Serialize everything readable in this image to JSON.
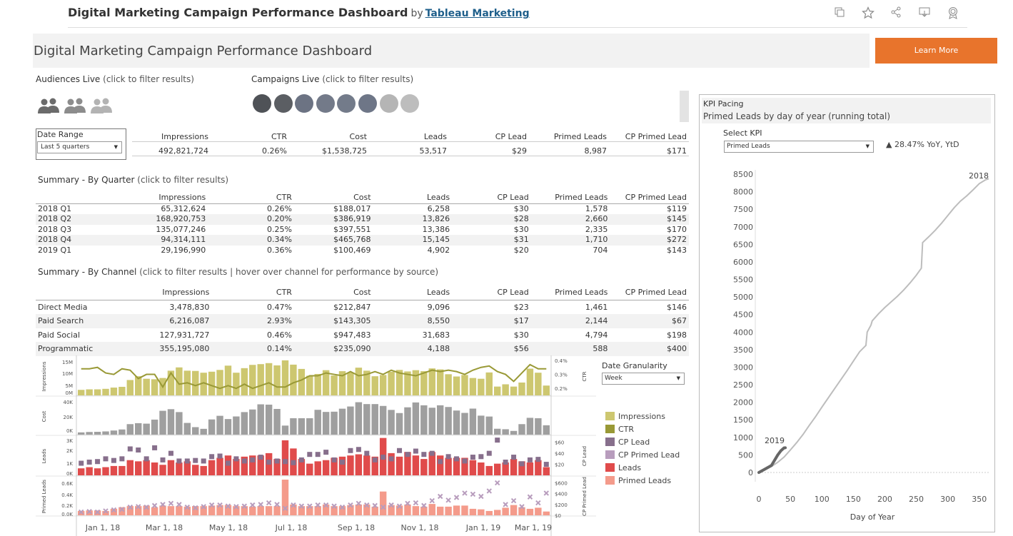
{
  "top": {
    "title": "Digital Marketing Campaign Performance Dashboard",
    "by": "by",
    "author": "Tableau Marketing",
    "icons": [
      "copy-icon",
      "star-icon",
      "share-icon",
      "download-icon",
      "award-icon"
    ]
  },
  "header": {
    "title": "Digital Marketing Campaign Performance Dashboard",
    "learn_more": "Learn More"
  },
  "audiences": {
    "label": "Audiences Live",
    "hint": "(click to filter results)"
  },
  "campaigns": {
    "label": "Campaigns Live",
    "hint": "(click to filter results)",
    "dot_colors": [
      "#4f5257",
      "#5b5e63",
      "#6c7383",
      "#737a89",
      "#737b8a",
      "#6e7687",
      "#b5b5b5",
      "#bdbdbd"
    ]
  },
  "date_range": {
    "label": "Date Range",
    "value": "Last 5 quarters"
  },
  "totals": {
    "headers": [
      "Impressions",
      "CTR",
      "Cost",
      "Leads",
      "CP Lead",
      "Primed Leads",
      "CP Primed Lead"
    ],
    "values": [
      "492,821,724",
      "0.26%",
      "$1,538,725",
      "53,517",
      "$29",
      "8,987",
      "$171"
    ]
  },
  "by_quarter": {
    "title": "Summary - By Quarter",
    "hint": "(click to filter results)",
    "headers": [
      "Impressions",
      "CTR",
      "Cost",
      "Leads",
      "CP Lead",
      "Primed Leads",
      "CP Primed Lead"
    ],
    "rows": [
      [
        "2018 Q1",
        "65,312,624",
        "0.26%",
        "$188,017",
        "6,258",
        "$30",
        "1,578",
        "$119"
      ],
      [
        "2018 Q2",
        "168,920,753",
        "0.20%",
        "$386,919",
        "13,826",
        "$28",
        "2,660",
        "$145"
      ],
      [
        "2018 Q3",
        "135,077,246",
        "0.25%",
        "$397,551",
        "13,386",
        "$30",
        "2,335",
        "$170"
      ],
      [
        "2018 Q4",
        "94,314,111",
        "0.34%",
        "$465,768",
        "15,145",
        "$31",
        "1,710",
        "$272"
      ],
      [
        "2019 Q1",
        "29,196,990",
        "0.36%",
        "$100,469",
        "4,902",
        "$20",
        "704",
        "$143"
      ]
    ]
  },
  "by_channel": {
    "title": "Summary - By Channel",
    "hint": "(click to filter results | hover over channel for performance by source)",
    "headers": [
      "Impressions",
      "CTR",
      "Cost",
      "Leads",
      "CP Lead",
      "Primed Leads",
      "CP Primed Lead"
    ],
    "rows": [
      [
        "Direct Media",
        "3,478,830",
        "0.47%",
        "$212,847",
        "9,096",
        "$23",
        "1,461",
        "$146"
      ],
      [
        "Paid Search",
        "6,216,087",
        "2.93%",
        "$143,305",
        "8,550",
        "$17",
        "2,144",
        "$67"
      ],
      [
        "Paid Social",
        "127,931,727",
        "0.46%",
        "$947,483",
        "31,683",
        "$30",
        "4,794",
        "$198"
      ],
      [
        "Programmatic",
        "355,195,080",
        "0.14%",
        "$235,090",
        "4,188",
        "$56",
        "588",
        "$400"
      ]
    ]
  },
  "date_granularity": {
    "label": "Date Granularity",
    "value": "Week"
  },
  "legend": [
    {
      "label": "Impressions",
      "color": "#cdc770"
    },
    {
      "label": "CTR",
      "color": "#999936"
    },
    {
      "label": "CP Lead",
      "color": "#876f8c"
    },
    {
      "label": "CP Primed Lead",
      "color": "#b89dbd"
    },
    {
      "label": "Leads",
      "color": "#e04b4b"
    },
    {
      "label": "Primed Leads",
      "color": "#f49b8b"
    }
  ],
  "kpi": {
    "title": "KPI Pacing",
    "subtitle": "Primed Leads by day of year (running total)",
    "select_label": "Select KPI",
    "select_value": "Primed Leads",
    "yoy": "▲ 28.47% YoY, YtD"
  },
  "chart_data": [
    {
      "type": "bar",
      "name": "weekly-panels",
      "x_ticks": [
        "Jan 1, 18",
        "Mar 1, 18",
        "May 1, 18",
        "Jul 1, 18",
        "Sep 1, 18",
        "Nov 1, 18",
        "Jan 1, 19",
        "Mar 1, 19"
      ],
      "panels": [
        {
          "ylabel": "Impressions",
          "yticks": [
            "15M",
            "10M",
            "5M",
            "0M"
          ],
          "y2label": "CTR",
          "y2ticks": [
            "0.4%",
            "0.3%",
            "0.2%"
          ]
        },
        {
          "ylabel": "Cost",
          "yticks": [
            "40K",
            "20K",
            "0K"
          ]
        },
        {
          "ylabel": "Leads",
          "yticks": [
            "3K",
            "2K",
            "1K",
            "0K"
          ],
          "y2label": "CP Lead",
          "y2ticks": [
            "$60",
            "$40",
            "$20"
          ]
        },
        {
          "ylabel": "Primed Leads",
          "yticks": [
            "0.6K",
            "0.4K",
            "0.2K",
            "0.0K"
          ],
          "y2label": "CP Primed Lead",
          "y2ticks": [
            "$600",
            "$400",
            "$200",
            "$0"
          ]
        }
      ],
      "series": [
        {
          "name": "Impressions",
          "values": [
            2.2,
            2.4,
            2.4,
            2.6,
            3.1,
            3.4,
            6.1,
            7.6,
            6.6,
            6.4,
            6.9,
            9.8,
            11.1,
            9.8,
            9.7,
            9.0,
            9.4,
            10.1,
            11.8,
            9.0,
            10.8,
            12.1,
            12.4,
            12.8,
            11.9,
            13.9,
            12.2,
            10.5,
            7.8,
            8.5,
            10.0,
            7.9,
            9.6,
            9.1,
            11.0,
            9.8,
            7.6,
            8.1,
            9.4,
            10.1,
            9.5,
            10.0,
            9.6,
            10.7,
            10.3,
            8.4,
            7.5,
            8.1,
            6.9,
            6.6,
            9.1,
            3.5,
            4.4,
            3.5,
            5.1,
            10.6,
            9.0,
            3.9
          ]
        },
        {
          "name": "CTR",
          "values": [
            0.34,
            0.34,
            0.35,
            0.31,
            0.3,
            0.34,
            0.33,
            0.27,
            0.3,
            0.3,
            0.21,
            0.31,
            0.23,
            0.24,
            0.22,
            0.24,
            0.22,
            0.2,
            0.22,
            0.2,
            0.23,
            0.2,
            0.22,
            0.24,
            0.21,
            0.21,
            0.24,
            0.26,
            0.29,
            0.29,
            0.31,
            0.3,
            0.29,
            0.32,
            0.29,
            0.3,
            0.32,
            0.3,
            0.33,
            0.31,
            0.3,
            0.29,
            0.31,
            0.33,
            0.32,
            0.33,
            0.32,
            0.3,
            0.33,
            0.35,
            0.36,
            0.32,
            0.3,
            0.25,
            0.31,
            0.37,
            0.34,
            0.34
          ]
        },
        {
          "name": "Cost",
          "values": [
            2800,
            3300,
            3500,
            4000,
            5100,
            6400,
            13000,
            14200,
            13600,
            18600,
            29500,
            31500,
            27900,
            14500,
            9300,
            7200,
            18800,
            23300,
            19300,
            22500,
            27900,
            31100,
            37500,
            37100,
            31800,
            11200,
            20300,
            20300,
            20300,
            30700,
            28100,
            28400,
            32100,
            34800,
            40100,
            37800,
            37800,
            35500,
            30600,
            26700,
            33800,
            39800,
            36300,
            33300,
            36300,
            34200,
            29800,
            26900,
            32200,
            23500,
            22400,
            7300,
            6700,
            4600,
            13000,
            20800,
            20300,
            11600
          ]
        },
        {
          "name": "Leads",
          "values": [
            600,
            700,
            600,
            700,
            800,
            800,
            1300,
            1200,
            1300,
            1100,
            900,
            1300,
            1100,
            1200,
            900,
            800,
            1300,
            1500,
            1700,
            1400,
            1600,
            1700,
            1700,
            1900,
            1400,
            3000,
            2300,
            1400,
            1000,
            1200,
            1300,
            1500,
            1600,
            1700,
            1800,
            1700,
            1600,
            3200,
            1900,
            1600,
            2000,
            1700,
            1400,
            2000,
            1700,
            1500,
            1500,
            1500,
            1300,
            1100,
            800,
            1000,
            1100,
            1400,
            1200,
            1100,
            1300,
            700
          ]
        },
        {
          "name": "CP Lead",
          "values": [
            22,
            24,
            25,
            30,
            27,
            30,
            48,
            46,
            30,
            50,
            28,
            40,
            26,
            26,
            27,
            26,
            34,
            35,
            22,
            30,
            26,
            28,
            33,
            24,
            26,
            25,
            23,
            28,
            38,
            38,
            42,
            28,
            24,
            45,
            47,
            40,
            28,
            33,
            30,
            45,
            38,
            44,
            38,
            40,
            25,
            34,
            30,
            26,
            33,
            34,
            40,
            64,
            24,
            33,
            21,
            28,
            29,
            20
          ]
        },
        {
          "name": "Primed Leads",
          "values": [
            80,
            90,
            90,
            80,
            120,
            150,
            170,
            170,
            180,
            150,
            180,
            170,
            170,
            160,
            170,
            170,
            180,
            190,
            190,
            170,
            170,
            160,
            170,
            170,
            170,
            660,
            200,
            170,
            170,
            170,
            200,
            170,
            170,
            190,
            200,
            200,
            160,
            440,
            190,
            180,
            200,
            170,
            160,
            210,
            160,
            160,
            180,
            180,
            120,
            110,
            80,
            100,
            140,
            190,
            150,
            120,
            140,
            70
          ]
        },
        {
          "name": "CP Primed Lead",
          "values": [
            60,
            70,
            60,
            80,
            100,
            110,
            150,
            160,
            150,
            180,
            200,
            220,
            200,
            150,
            140,
            160,
            190,
            190,
            170,
            160,
            170,
            190,
            200,
            230,
            200,
            130,
            190,
            170,
            170,
            190,
            190,
            170,
            150,
            190,
            220,
            190,
            180,
            150,
            190,
            170,
            220,
            230,
            180,
            270,
            350,
            280,
            330,
            410,
            390,
            350,
            450,
            600,
            200,
            270,
            160,
            340,
            230,
            410
          ]
        }
      ]
    },
    {
      "type": "line",
      "name": "kpi-pacing",
      "xlabel": "Day of Year",
      "xticks": [
        0,
        50,
        100,
        150,
        200,
        250,
        300,
        350
      ],
      "yticks": [
        0,
        500,
        1000,
        1500,
        2000,
        2500,
        3000,
        3500,
        4000,
        4500,
        5000,
        5500,
        6000,
        6500,
        7000,
        7500,
        8000,
        8500
      ],
      "xlim": [
        0,
        365
      ],
      "ylim": [
        -100,
        8700
      ],
      "series": [
        {
          "name": "2018",
          "x": [
            0,
            10,
            20,
            30,
            40,
            50,
            60,
            70,
            80,
            90,
            100,
            110,
            120,
            130,
            140,
            150,
            160,
            170,
            172,
            178,
            180,
            190,
            200,
            210,
            220,
            230,
            240,
            250,
            258,
            260,
            270,
            280,
            290,
            300,
            310,
            320,
            330,
            340,
            350,
            360,
            365
          ],
          "y": [
            0,
            80,
            170,
            290,
            440,
            640,
            850,
            1080,
            1340,
            1590,
            1860,
            2120,
            2380,
            2640,
            2900,
            3170,
            3440,
            3620,
            4000,
            4200,
            4320,
            4520,
            4700,
            4860,
            5020,
            5200,
            5400,
            5620,
            5820,
            6550,
            6720,
            6900,
            7100,
            7320,
            7540,
            7730,
            7880,
            8050,
            8230,
            8340,
            8370
          ]
        },
        {
          "name": "2019",
          "x": [
            0,
            10,
            20,
            25,
            30,
            35,
            40,
            42
          ],
          "y": [
            0,
            100,
            200,
            350,
            500,
            620,
            700,
            704
          ]
        }
      ]
    }
  ]
}
